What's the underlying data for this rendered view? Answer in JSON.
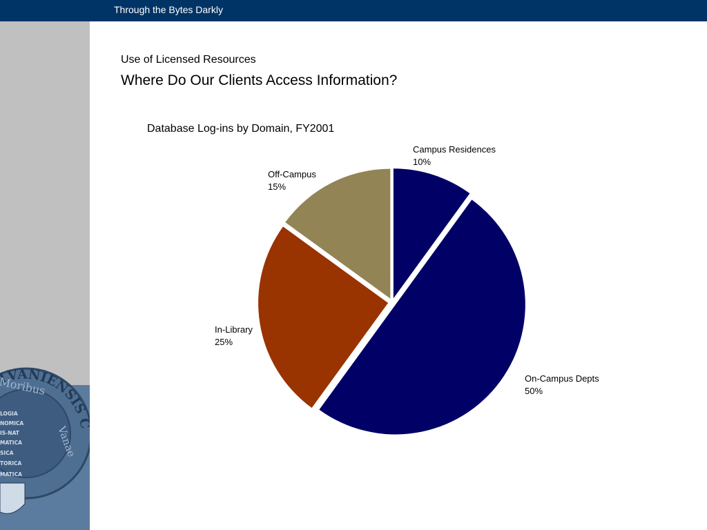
{
  "header": {
    "title": "Through the Bytes Darkly"
  },
  "section_title": "Use of Licensed Resources",
  "page_title": "Where Do Our Clients Access Information?",
  "seal": {
    "text_top": "NNSYLVANIENSIS CVRATORVM",
    "text_motto": "Moribus",
    "text_vanae": "Vanae",
    "book_lines": [
      "LOGIA",
      "NOMICA",
      "IS-NAT",
      "MATICA",
      "SICA",
      "TORICA",
      "MATICA"
    ]
  },
  "chart_data": {
    "type": "pie",
    "title": "Database Log-ins by Domain, FY2001",
    "slices": [
      {
        "label": "Campus Residences",
        "value": 10,
        "display": "10%",
        "color": "#000066"
      },
      {
        "label": "On-Campus Depts",
        "value": 50,
        "display": "50%",
        "color": "#000066"
      },
      {
        "label": "In-Library",
        "value": 25,
        "display": "25%",
        "color": "#993300"
      },
      {
        "label": "Off-Campus",
        "value": 15,
        "display": "15%",
        "color": "#928455"
      }
    ]
  }
}
